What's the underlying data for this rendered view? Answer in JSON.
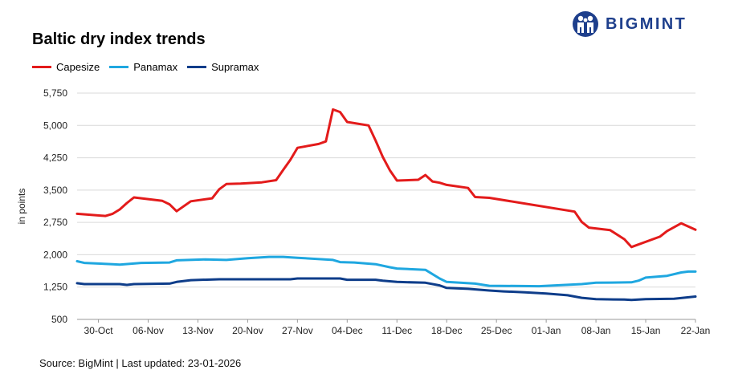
{
  "chart_data": {
    "type": "line",
    "title": "Baltic dry index trends",
    "ylabel": "in points",
    "xlabel": "",
    "ylim": [
      500,
      5750
    ],
    "yticks": [
      500,
      1250,
      2000,
      2750,
      3500,
      4250,
      5000,
      5750
    ],
    "ytick_labels": [
      "500",
      "1,250",
      "2,000",
      "2,750",
      "3,500",
      "4,250",
      "5,000",
      "5,750"
    ],
    "xlim": [
      "2025-10-27",
      "2026-01-22"
    ],
    "xticks": [
      "2025-10-30",
      "2025-11-06",
      "2025-11-13",
      "2025-11-20",
      "2025-11-27",
      "2025-12-04",
      "2025-12-11",
      "2025-12-18",
      "2025-12-25",
      "2026-01-01",
      "2026-01-08",
      "2026-01-15",
      "2026-01-22"
    ],
    "xtick_labels": [
      "30-Oct",
      "06-Nov",
      "13-Nov",
      "20-Nov",
      "27-Nov",
      "04-Dec",
      "11-Dec",
      "18-Dec",
      "25-Dec",
      "01-Jan",
      "08-Jan",
      "15-Jan",
      "22-Jan"
    ],
    "grid": "horizontal",
    "legend_position": "top-left",
    "series": [
      {
        "name": "Capesize",
        "color": "#e31b1b",
        "points": [
          [
            "2025-10-27",
            2950
          ],
          [
            "2025-10-31",
            2900
          ],
          [
            "2025-11-01",
            2950
          ],
          [
            "2025-11-02",
            3050
          ],
          [
            "2025-11-03",
            3200
          ],
          [
            "2025-11-04",
            3330
          ],
          [
            "2025-11-08",
            3250
          ],
          [
            "2025-11-09",
            3170
          ],
          [
            "2025-11-10",
            3010
          ],
          [
            "2025-11-12",
            3240
          ],
          [
            "2025-11-15",
            3310
          ],
          [
            "2025-11-16",
            3520
          ],
          [
            "2025-11-17",
            3640
          ],
          [
            "2025-11-19",
            3650
          ],
          [
            "2025-11-22",
            3680
          ],
          [
            "2025-11-24",
            3730
          ],
          [
            "2025-11-25",
            3970
          ],
          [
            "2025-11-26",
            4200
          ],
          [
            "2025-11-27",
            4480
          ],
          [
            "2025-11-30",
            4570
          ],
          [
            "2025-12-01",
            4630
          ],
          [
            "2025-12-02",
            5370
          ],
          [
            "2025-12-03",
            5310
          ],
          [
            "2025-12-04",
            5080
          ],
          [
            "2025-12-07",
            5000
          ],
          [
            "2025-12-08",
            4650
          ],
          [
            "2025-12-09",
            4270
          ],
          [
            "2025-12-10",
            3960
          ],
          [
            "2025-12-11",
            3720
          ],
          [
            "2025-12-14",
            3740
          ],
          [
            "2025-12-15",
            3850
          ],
          [
            "2025-12-16",
            3700
          ],
          [
            "2025-12-17",
            3670
          ],
          [
            "2025-12-18",
            3620
          ],
          [
            "2025-12-21",
            3550
          ],
          [
            "2025-12-22",
            3340
          ],
          [
            "2025-12-24",
            3320
          ],
          [
            "2026-01-05",
            3000
          ],
          [
            "2026-01-06",
            2760
          ],
          [
            "2026-01-07",
            2630
          ],
          [
            "2026-01-10",
            2570
          ],
          [
            "2026-01-12",
            2360
          ],
          [
            "2026-01-13",
            2180
          ],
          [
            "2026-01-17",
            2420
          ],
          [
            "2026-01-18",
            2550
          ],
          [
            "2026-01-20",
            2730
          ],
          [
            "2026-01-22",
            2580
          ]
        ]
      },
      {
        "name": "Panamax",
        "color": "#1fa7e0",
        "points": [
          [
            "2025-10-27",
            1850
          ],
          [
            "2025-10-28",
            1810
          ],
          [
            "2025-11-01",
            1780
          ],
          [
            "2025-11-02",
            1770
          ],
          [
            "2025-11-05",
            1810
          ],
          [
            "2025-11-09",
            1820
          ],
          [
            "2025-11-10",
            1870
          ],
          [
            "2025-11-14",
            1890
          ],
          [
            "2025-11-17",
            1880
          ],
          [
            "2025-11-20",
            1920
          ],
          [
            "2025-11-23",
            1950
          ],
          [
            "2025-11-25",
            1950
          ],
          [
            "2025-11-27",
            1930
          ],
          [
            "2025-12-02",
            1880
          ],
          [
            "2025-12-03",
            1830
          ],
          [
            "2025-12-05",
            1820
          ],
          [
            "2025-12-08",
            1780
          ],
          [
            "2025-12-10",
            1710
          ],
          [
            "2025-12-11",
            1680
          ],
          [
            "2025-12-15",
            1650
          ],
          [
            "2025-12-17",
            1450
          ],
          [
            "2025-12-18",
            1370
          ],
          [
            "2025-12-22",
            1330
          ],
          [
            "2025-12-24",
            1280
          ],
          [
            "2025-12-31",
            1270
          ],
          [
            "2026-01-06",
            1320
          ],
          [
            "2026-01-08",
            1350
          ],
          [
            "2026-01-13",
            1360
          ],
          [
            "2026-01-14",
            1400
          ],
          [
            "2026-01-15",
            1470
          ],
          [
            "2026-01-18",
            1510
          ],
          [
            "2026-01-20",
            1590
          ],
          [
            "2026-01-21",
            1610
          ],
          [
            "2026-01-22",
            1610
          ]
        ]
      },
      {
        "name": "Supramax",
        "color": "#0e3d8a",
        "points": [
          [
            "2025-10-27",
            1340
          ],
          [
            "2025-10-28",
            1320
          ],
          [
            "2025-11-02",
            1320
          ],
          [
            "2025-11-03",
            1300
          ],
          [
            "2025-11-04",
            1320
          ],
          [
            "2025-11-09",
            1330
          ],
          [
            "2025-11-10",
            1370
          ],
          [
            "2025-11-12",
            1410
          ],
          [
            "2025-11-16",
            1430
          ],
          [
            "2025-11-26",
            1430
          ],
          [
            "2025-11-27",
            1450
          ],
          [
            "2025-12-03",
            1450
          ],
          [
            "2025-12-04",
            1420
          ],
          [
            "2025-12-08",
            1420
          ],
          [
            "2025-12-09",
            1400
          ],
          [
            "2025-12-11",
            1370
          ],
          [
            "2025-12-15",
            1350
          ],
          [
            "2025-12-17",
            1290
          ],
          [
            "2025-12-18",
            1230
          ],
          [
            "2025-12-21",
            1210
          ],
          [
            "2025-12-24",
            1170
          ],
          [
            "2025-12-26",
            1150
          ],
          [
            "2025-12-29",
            1130
          ],
          [
            "2026-01-01",
            1100
          ],
          [
            "2026-01-04",
            1060
          ],
          [
            "2026-01-06",
            1000
          ],
          [
            "2026-01-08",
            970
          ],
          [
            "2026-01-12",
            960
          ],
          [
            "2026-01-13",
            950
          ],
          [
            "2026-01-14",
            960
          ],
          [
            "2026-01-15",
            970
          ],
          [
            "2026-01-19",
            980
          ],
          [
            "2026-01-22",
            1030
          ]
        ]
      }
    ]
  },
  "brand": {
    "name": "BIGMINT",
    "color": "#1e3f8c",
    "icon": "people-logo-icon"
  },
  "footer": {
    "source": "Source: BigMint | Last updated: 23-01-2026"
  }
}
